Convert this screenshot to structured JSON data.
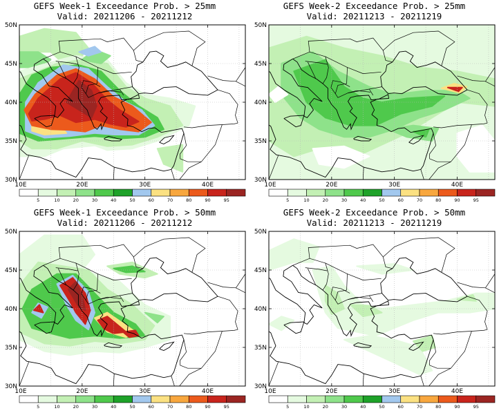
{
  "palette": {
    "bins": [
      "#ffffff",
      "#e5fae0",
      "#c3f0b4",
      "#8ee28a",
      "#4fc94c",
      "#1ea229",
      "#a2c8ee",
      "#fbe182",
      "#f8a73e",
      "#ec5a1c",
      "#c8241c",
      "#9b2522"
    ],
    "land_outline": "#000000",
    "grid": "#b8b8b8"
  },
  "colorbar_labels": [
    "5",
    "10",
    "20",
    "30",
    "40",
    "50",
    "60",
    "70",
    "80",
    "90",
    "95"
  ],
  "axes": {
    "lat_labels": [
      "50N",
      "45N",
      "40N",
      "35N",
      "30N"
    ],
    "lon_labels": [
      "10E",
      "20E",
      "30E",
      "40E"
    ]
  },
  "panels": [
    {
      "title_line1": "GEFS Week-1 Exceedance Prob. > 25mm",
      "title_line2": "Valid: 20211206 - 20211212",
      "week": 1,
      "threshold_mm": 25,
      "max_probability_region": "Balkans / Greece / Italy",
      "max_probability_pct": 95
    },
    {
      "title_line1": "GEFS Week-2 Exceedance Prob. > 25mm",
      "title_line2": "Valid: 20211213 - 20211219",
      "week": 2,
      "threshold_mm": 25,
      "max_probability_region": "Eastern Black Sea",
      "max_probability_pct": 90
    },
    {
      "title_line1": "GEFS Week-1 Exceedance Prob. > 50mm",
      "title_line2": "Valid: 20211206 - 20211212",
      "week": 1,
      "threshold_mm": 50,
      "max_probability_region": "Western Greece / Albania",
      "max_probability_pct": 95
    },
    {
      "title_line1": "GEFS Week-2 Exceedance Prob. > 50mm",
      "title_line2": "Valid: 20211213 - 20211219",
      "week": 2,
      "threshold_mm": 50,
      "max_probability_region": "none significant",
      "max_probability_pct": 20
    }
  ]
}
